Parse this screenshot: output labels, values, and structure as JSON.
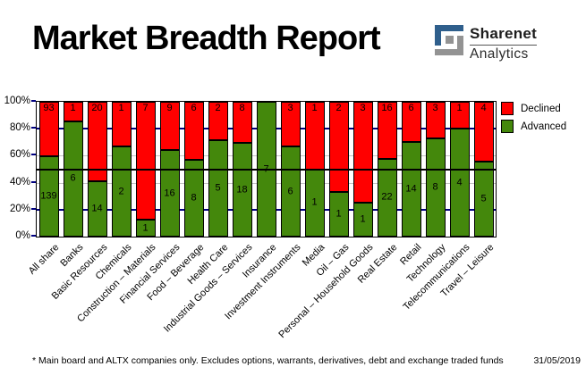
{
  "title": "Market Breadth Report",
  "logo": {
    "name": "Sharenet",
    "sub": "Analytics",
    "blue": "#2F5F8C",
    "gray": "#939393"
  },
  "legend": [
    {
      "label": "Declined",
      "color": "#FF0000"
    },
    {
      "label": "Advanced",
      "color": "#44880C"
    }
  ],
  "footnote": "* Main board and ALTX companies only. Excludes options, warrants, derivatives, debt and exchange traded funds",
  "date": "31/05/2019",
  "chart_data": {
    "type": "bar",
    "subtype": "stacked-100-percent",
    "title": "Market Breadth Report",
    "xlabel": "",
    "ylabel": "",
    "ylim": [
      0,
      100
    ],
    "y_ticks": [
      "100%",
      "80%",
      "60%",
      "40%",
      "20%",
      "0%"
    ],
    "legend_position": "top-right",
    "categories": [
      "All share",
      "Banks",
      "Basic Resources",
      "Chemicals",
      "Construction – Materials",
      "Financial Services",
      "Food – Beverage",
      "Health Care",
      "Industrial Goods – Services",
      "Insurance",
      "Investment Instruments",
      "Media",
      "Oil – Gas",
      "Personal – Household Goods",
      "Real Estate",
      "Retail",
      "Technology",
      "Telecommunications",
      "Travel – Leisure"
    ],
    "series": [
      {
        "name": "Declined",
        "color": "#FF0000",
        "values": [
          93,
          1,
          20,
          1,
          7,
          9,
          6,
          2,
          8,
          0,
          3,
          1,
          2,
          3,
          16,
          6,
          3,
          1,
          4
        ]
      },
      {
        "name": "Advanced",
        "color": "#44880C",
        "values": [
          139,
          6,
          14,
          2,
          1,
          16,
          8,
          5,
          18,
          7,
          6,
          1,
          1,
          1,
          22,
          14,
          8,
          4,
          5
        ]
      }
    ],
    "gridlines": {
      "navy_pct": [
        20,
        80
      ],
      "navy_color": "#000080",
      "gray_pct": [
        40,
        60
      ],
      "gray_color": "#C4C4C4",
      "reference_line_pct": 50,
      "reference_color": "#000000"
    }
  }
}
